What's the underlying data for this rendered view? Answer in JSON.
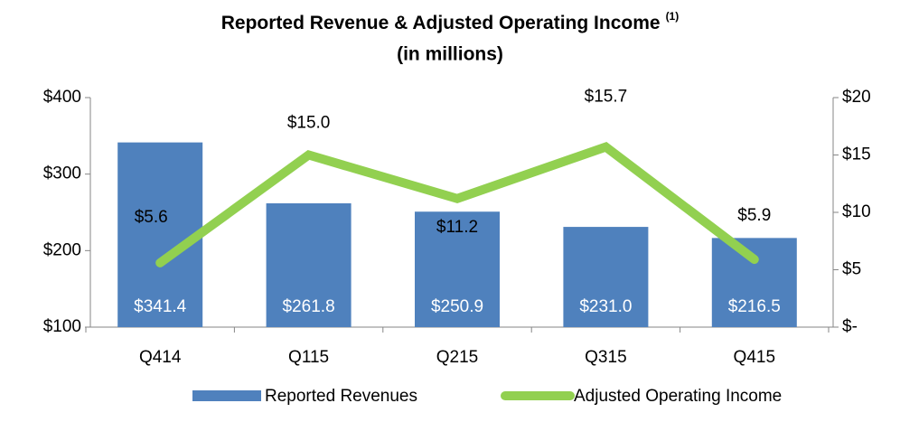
{
  "chart_data": {
    "type": "bar_line",
    "title": "Reported Revenue & Adjusted Operating Income",
    "title_superscript": "(1)",
    "subtitle": "(in millions)",
    "categories": [
      "Q414",
      "Q115",
      "Q215",
      "Q315",
      "Q415"
    ],
    "series": [
      {
        "name": "Reported Revenues",
        "type": "bar",
        "color": "#4f81bd",
        "axis": "y",
        "values": [
          341.4,
          261.8,
          250.9,
          231.0,
          216.5
        ],
        "value_labels": [
          "$341.4",
          "$261.8",
          "$250.9",
          "$231.0",
          "$216.5"
        ]
      },
      {
        "name": "Adjusted Operating Income",
        "type": "line",
        "color": "#92d050",
        "axis": "y2",
        "values": [
          5.6,
          15.0,
          11.2,
          15.7,
          5.9
        ],
        "value_labels": [
          "$5.6",
          "$15.0",
          "$11.2",
          "$15.7",
          "$5.9"
        ]
      }
    ],
    "ylim": [
      100,
      400
    ],
    "yticks": [
      {
        "value": 100,
        "label": "$100"
      },
      {
        "value": 200,
        "label": "$200"
      },
      {
        "value": 300,
        "label": "$300"
      },
      {
        "value": 400,
        "label": "$400"
      }
    ],
    "y2lim": [
      0,
      20
    ],
    "y2ticks": [
      {
        "value": 0,
        "label": "$-"
      },
      {
        "value": 5,
        "label": "$5"
      },
      {
        "value": 10,
        "label": "$10"
      },
      {
        "value": 15,
        "label": "$15"
      },
      {
        "value": 20,
        "label": "$20"
      }
    ],
    "legend": "bottom"
  }
}
